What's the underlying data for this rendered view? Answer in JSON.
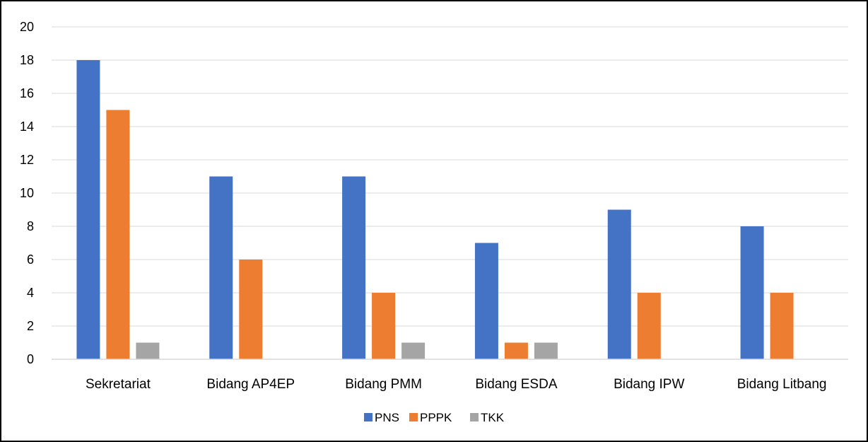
{
  "chart_data": {
    "type": "bar",
    "title": "",
    "xlabel": "",
    "ylabel": "",
    "categories": [
      "Sekretariat",
      "Bidang AP4EP",
      "Bidang PMM",
      "Bidang ESDA",
      "Bidang IPW",
      "Bidang Litbang"
    ],
    "series": [
      {
        "name": "PNS",
        "color": "#4472C4",
        "values": [
          18,
          11,
          11,
          7,
          9,
          8
        ]
      },
      {
        "name": "PPPK",
        "color": "#ED7D31",
        "values": [
          15,
          6,
          4,
          1,
          4,
          4
        ]
      },
      {
        "name": "TKK",
        "color": "#A5A5A5",
        "values": [
          1,
          0,
          1,
          1,
          0,
          0
        ]
      }
    ],
    "ylim": [
      0,
      20
    ],
    "yticks": [
      0,
      2,
      4,
      6,
      8,
      10,
      12,
      14,
      16,
      18,
      20
    ],
    "grid": true,
    "legend": "bottom"
  }
}
